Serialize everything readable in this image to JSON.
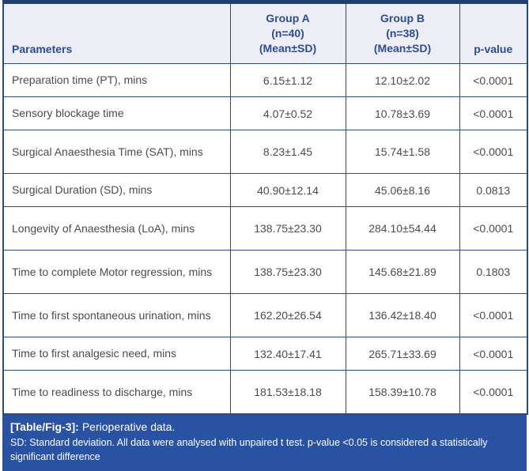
{
  "table": {
    "header": {
      "parameters": "Parameters",
      "group_a": "Group A\n(n=40)\n(Mean±SD)",
      "group_b": "Group B\n(n=38)\n(Mean±SD)",
      "p_value": "p-value"
    },
    "rows": [
      {
        "parameter": "Preparation time (PT), mins",
        "group_a": "6.15±1.12",
        "group_b": "12.10±2.02",
        "p_value": "<0.0001"
      },
      {
        "parameter": "Sensory blockage time",
        "group_a": "4.07±0.52",
        "group_b": "10.78±3.69",
        "p_value": "<0.0001"
      },
      {
        "parameter": "Surgical Anaesthesia Time (SAT), mins",
        "group_a": "8.23±1.45",
        "group_b": "15.74±1.58",
        "p_value": "<0.0001"
      },
      {
        "parameter": "Surgical Duration (SD), mins",
        "group_a": "40.90±12.14",
        "group_b": "45.06±8.16",
        "p_value": "0.0813"
      },
      {
        "parameter": "Longevity of Anaesthesia (LoA), mins",
        "group_a": "138.75±23.30",
        "group_b": "284.10±54.44",
        "p_value": "<0.0001"
      },
      {
        "parameter": "Time to complete Motor regression, mins",
        "group_a": "138.75±23.30",
        "group_b": "145.68±21.89",
        "p_value": "0.1803"
      },
      {
        "parameter": "Time to first spontaneous urination, mins",
        "group_a": "162.20±26.54",
        "group_b": "136.42±18.40",
        "p_value": "<0.0001"
      },
      {
        "parameter": "Time to first analgesic need, mins",
        "group_a": "132.40±17.41",
        "group_b": "265.71±33.69",
        "p_value": "<0.0001"
      },
      {
        "parameter": "Time to readiness to discharge, mins",
        "group_a": "181.53±18.18",
        "group_b": "158.39±10.78",
        "p_value": "<0.0001"
      }
    ]
  },
  "footer": {
    "caption_label": "[Table/Fig-3]:",
    "caption_text": "Perioperative data.",
    "note": "SD: Standard deviation. All data were analysed with unpaired t test. p-value <0.05 is considered a statistically significant difference"
  },
  "colors": {
    "grid_border": "#2d4a7d",
    "outer_border": "#243f6b",
    "header_bg": "#ecedf5",
    "header_text": "#2d4d93",
    "body_text": "#4b4b4d",
    "footer_bg": "#2a52a2",
    "footer_text": "#ffffff"
  }
}
